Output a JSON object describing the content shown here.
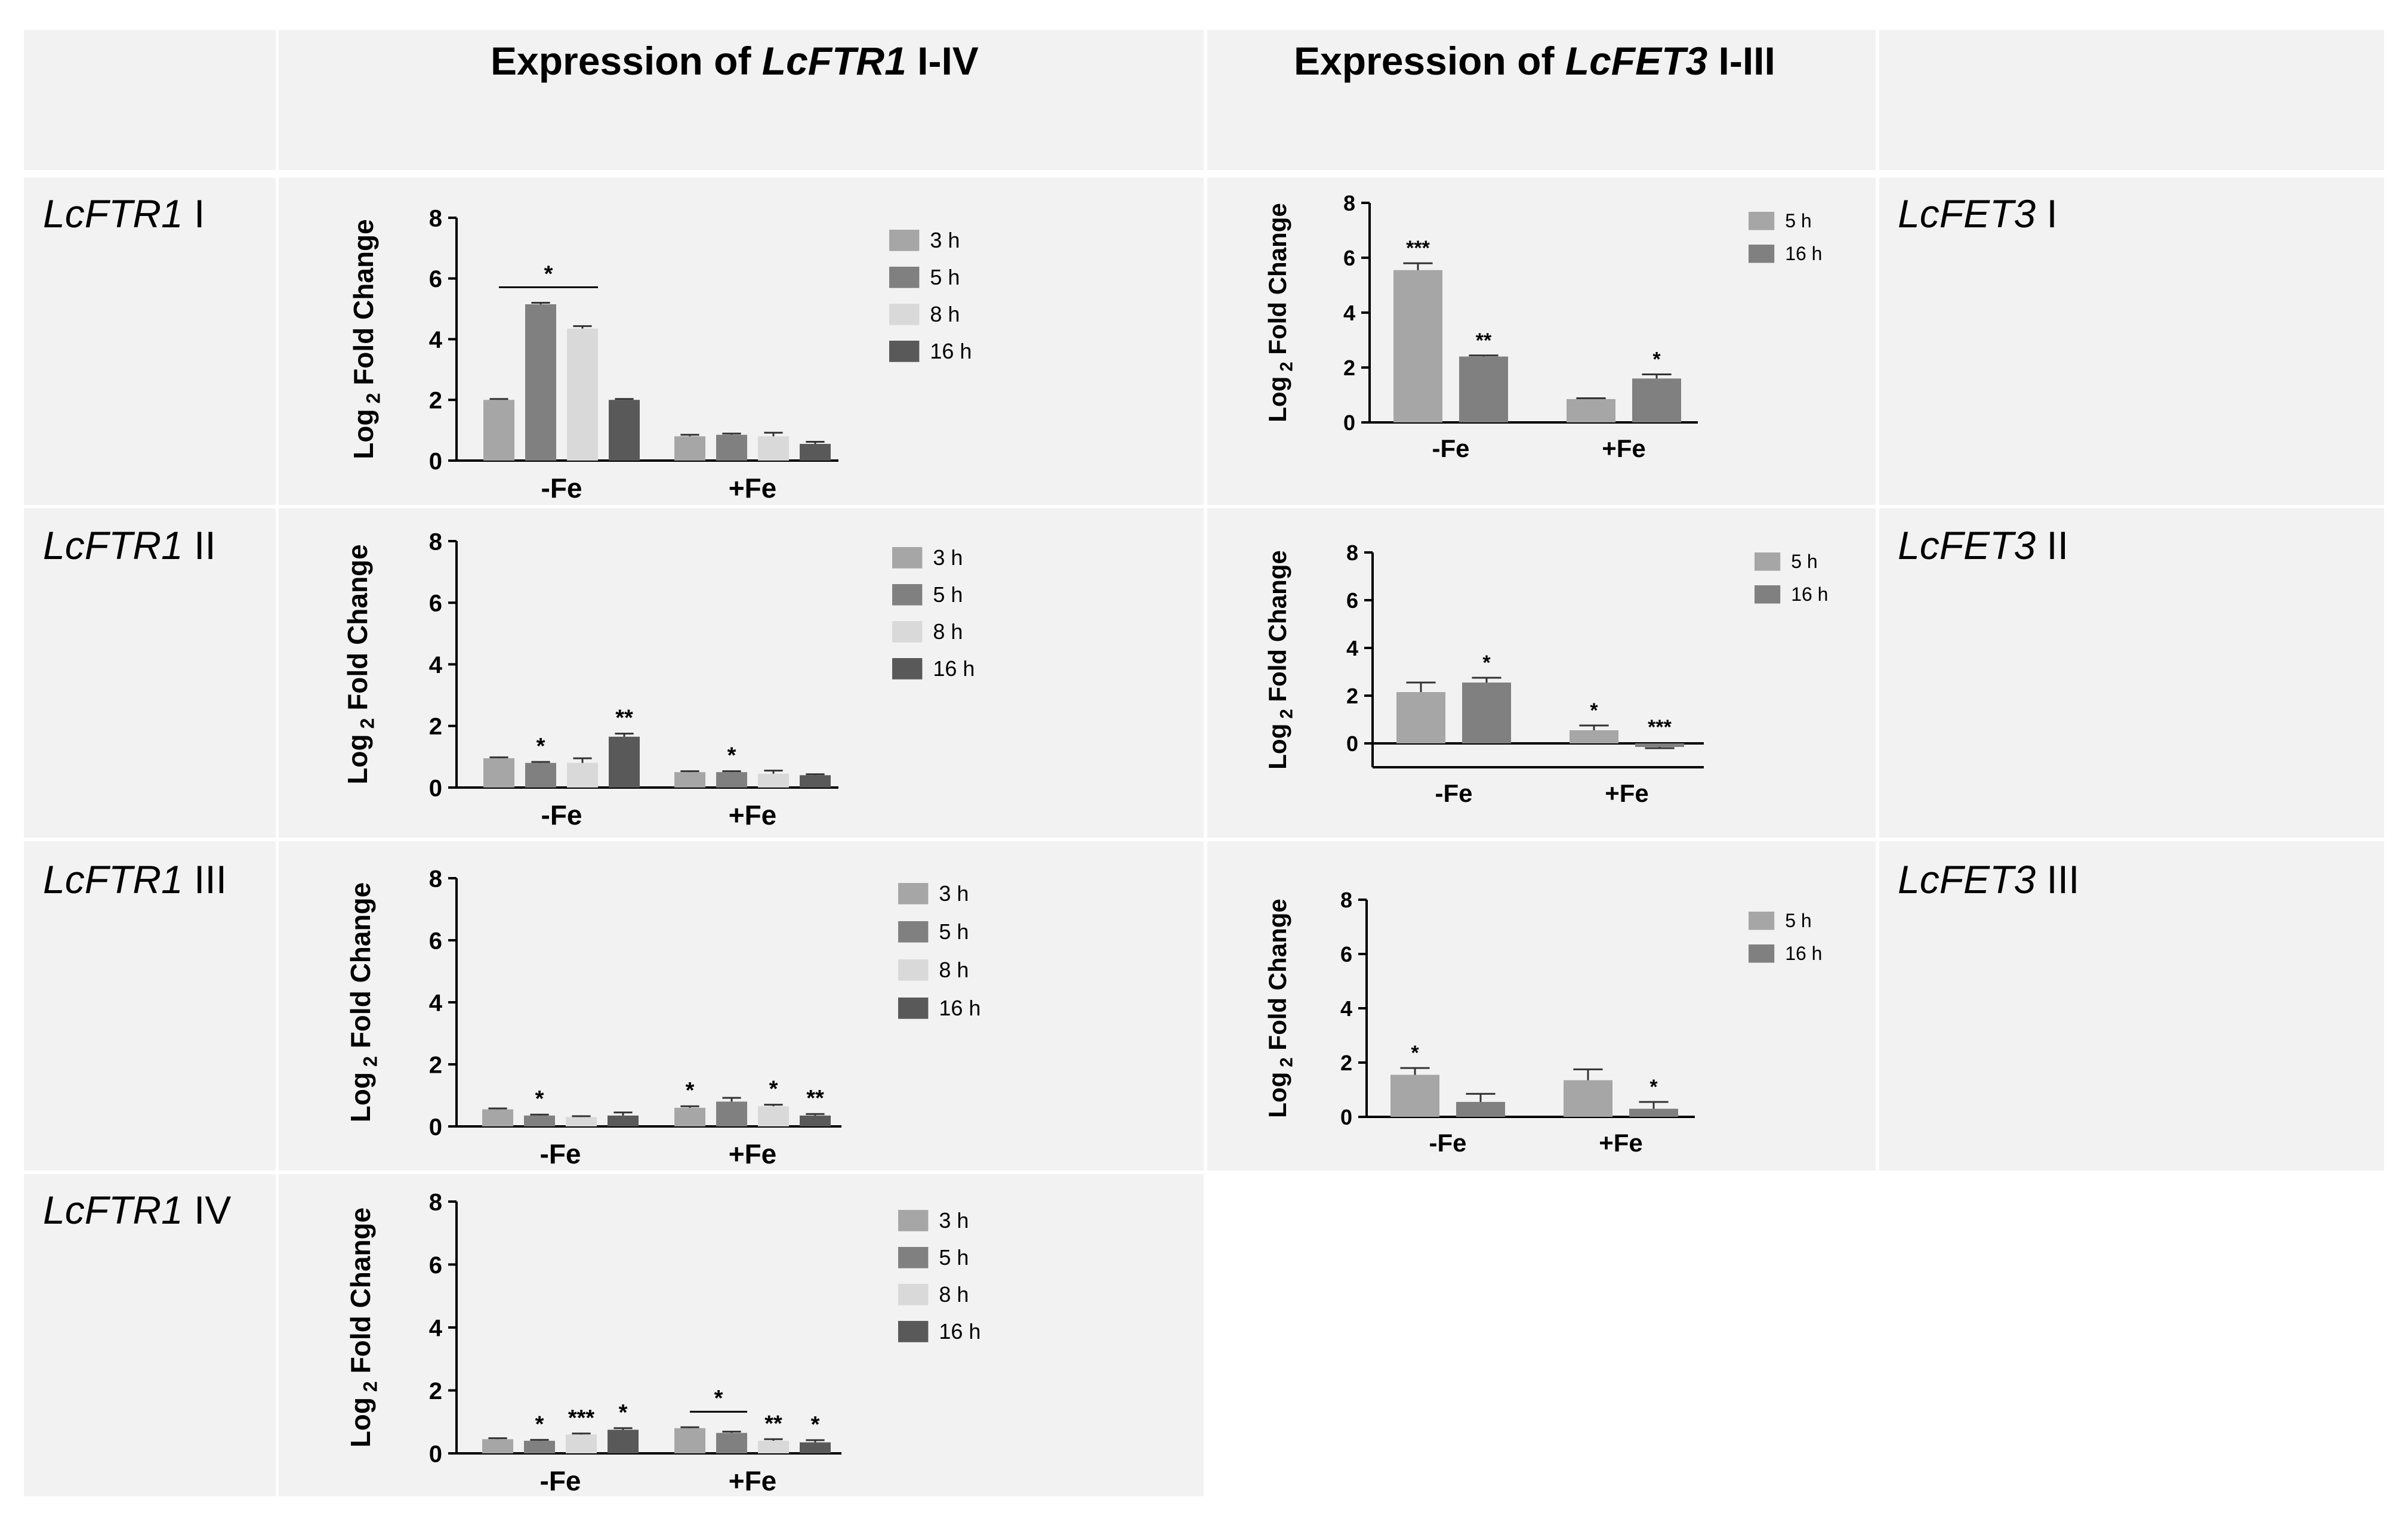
{
  "headers": {
    "ftr_prefix": "Expression of ",
    "ftr_gene": "LcFTR1",
    "ftr_suffix": " I-IV",
    "fet_prefix": "Expression of ",
    "fet_gene": "LcFET3",
    "fet_suffix": " I-III"
  },
  "row_labels": {
    "ftr": [
      {
        "gene": "LcFTR1",
        "num": " I"
      },
      {
        "gene": "LcFTR1",
        "num": " II"
      },
      {
        "gene": "LcFTR1",
        "num": " III"
      },
      {
        "gene": "LcFTR1",
        "num": " IV"
      }
    ],
    "fet": [
      {
        "gene": "LcFET3",
        "num": " I"
      },
      {
        "gene": "LcFET3",
        "num": " II"
      },
      {
        "gene": "LcFET3",
        "num": " III"
      }
    ]
  },
  "colors": {
    "3 h": "#a6a6a6",
    "5 h": "#808080",
    "8 h": "#d9d9d9",
    "16 h": "#595959",
    "fet_5h": "#a6a6a6",
    "fet_16h": "#808080"
  },
  "chart_data": [
    {
      "id": "ftr1-I",
      "type": "bar",
      "ylabel_main": "Log",
      "ylabel_sub": "2",
      "ylabel_rest": " Fold Change",
      "categories": [
        "-Fe",
        "+Fe"
      ],
      "ylim": [
        0,
        8
      ],
      "yticks": [
        "0",
        "2",
        "4",
        "6",
        "8"
      ],
      "series": [
        {
          "name": "3 h",
          "values": [
            2.0,
            0.8
          ],
          "err": [
            0.03,
            0.05
          ],
          "sig": [
            "",
            ""
          ]
        },
        {
          "name": "5 h",
          "values": [
            5.15,
            0.85
          ],
          "err": [
            0.05,
            0.04
          ],
          "sig": [
            "",
            ""
          ]
        },
        {
          "name": "8 h",
          "values": [
            4.35,
            0.8
          ],
          "err": [
            0.08,
            0.12
          ],
          "sig": [
            "",
            ""
          ]
        },
        {
          "name": "16 h",
          "values": [
            2.0,
            0.55
          ],
          "err": [
            0.03,
            0.07
          ],
          "sig": [
            "",
            ""
          ]
        }
      ],
      "brackets": [
        {
          "group": 0,
          "from": 0.5,
          "to": 2.5,
          "label": "*"
        }
      ]
    },
    {
      "id": "ftr1-II",
      "type": "bar",
      "ylabel_main": "Log",
      "ylabel_sub": "2",
      "ylabel_rest": " Fold Change",
      "categories": [
        "-Fe",
        "+Fe"
      ],
      "ylim": [
        0,
        8
      ],
      "yticks": [
        "0",
        "2",
        "4",
        "6",
        "8"
      ],
      "series": [
        {
          "name": "3 h",
          "values": [
            0.95,
            0.5
          ],
          "err": [
            0.03,
            0.03
          ],
          "sig": [
            "",
            ""
          ]
        },
        {
          "name": "5 h",
          "values": [
            0.8,
            0.5
          ],
          "err": [
            0.03,
            0.03
          ],
          "sig": [
            "*",
            "*"
          ]
        },
        {
          "name": "8 h",
          "values": [
            0.8,
            0.45
          ],
          "err": [
            0.15,
            0.1
          ],
          "sig": [
            "",
            ""
          ]
        },
        {
          "name": "16 h",
          "values": [
            1.65,
            0.4
          ],
          "err": [
            0.1,
            0.03
          ],
          "sig": [
            "**",
            ""
          ]
        }
      ],
      "brackets": []
    },
    {
      "id": "ftr1-III",
      "type": "bar",
      "ylabel_main": "Log",
      "ylabel_sub": "2",
      "ylabel_rest": " Fold Change",
      "categories": [
        "-Fe",
        "+Fe"
      ],
      "ylim": [
        0,
        8
      ],
      "yticks": [
        "0",
        "2",
        "4",
        "6",
        "8"
      ],
      "series": [
        {
          "name": "3 h",
          "values": [
            0.55,
            0.6
          ],
          "err": [
            0.03,
            0.05
          ],
          "sig": [
            "",
            "*"
          ]
        },
        {
          "name": "5 h",
          "values": [
            0.35,
            0.8
          ],
          "err": [
            0.03,
            0.12
          ],
          "sig": [
            "*",
            ""
          ]
        },
        {
          "name": "8 h",
          "values": [
            0.3,
            0.65
          ],
          "err": [
            0.03,
            0.05
          ],
          "sig": [
            "",
            "*"
          ]
        },
        {
          "name": "16 h",
          "values": [
            0.35,
            0.35
          ],
          "err": [
            0.1,
            0.05
          ],
          "sig": [
            "",
            "**"
          ]
        }
      ],
      "brackets": []
    },
    {
      "id": "ftr1-IV",
      "type": "bar",
      "ylabel_main": "Log",
      "ylabel_sub": "2",
      "ylabel_rest": " Fold Change",
      "categories": [
        "-Fe",
        "+Fe"
      ],
      "ylim": [
        0,
        8
      ],
      "yticks": [
        "0",
        "2",
        "4",
        "6",
        "8"
      ],
      "series": [
        {
          "name": "3 h",
          "values": [
            0.45,
            0.8
          ],
          "err": [
            0.03,
            0.03
          ],
          "sig": [
            "",
            ""
          ]
        },
        {
          "name": "5 h",
          "values": [
            0.4,
            0.65
          ],
          "err": [
            0.03,
            0.04
          ],
          "sig": [
            "*",
            ""
          ]
        },
        {
          "name": "8 h",
          "values": [
            0.6,
            0.4
          ],
          "err": [
            0.03,
            0.05
          ],
          "sig": [
            "***",
            "**"
          ]
        },
        {
          "name": "16 h",
          "values": [
            0.75,
            0.35
          ],
          "err": [
            0.05,
            0.07
          ],
          "sig": [
            "*",
            "*"
          ]
        }
      ],
      "brackets": [
        {
          "group": 1,
          "from": 0.5,
          "to": 1.5,
          "label": "*"
        }
      ]
    },
    {
      "id": "fet3-I",
      "type": "bar",
      "ylabel_main": "Log",
      "ylabel_sub": "2",
      "ylabel_rest": " Fold Change",
      "categories": [
        "-Fe",
        "+Fe"
      ],
      "ylim": [
        0,
        8
      ],
      "yticks": [
        "0",
        "2",
        "4",
        "6",
        "8"
      ],
      "series": [
        {
          "name": "5 h",
          "values": [
            5.55,
            0.85
          ],
          "err": [
            0.25,
            0.03
          ],
          "sig": [
            "***",
            ""
          ]
        },
        {
          "name": "16 h",
          "values": [
            2.4,
            1.6
          ],
          "err": [
            0.04,
            0.15
          ],
          "sig": [
            "**",
            "*"
          ]
        }
      ],
      "brackets": []
    },
    {
      "id": "fet3-II",
      "type": "bar",
      "ylabel_main": "Log",
      "ylabel_sub": "2",
      "ylabel_rest": " Fold Change",
      "categories": [
        "-Fe",
        "+Fe"
      ],
      "ylim": [
        -1,
        8
      ],
      "yticks": [
        "0",
        "2",
        "4",
        "6",
        "8"
      ],
      "series": [
        {
          "name": "5 h",
          "values": [
            2.15,
            0.55
          ],
          "err": [
            0.4,
            0.2
          ],
          "sig": [
            "",
            "*"
          ]
        },
        {
          "name": "16 h",
          "values": [
            2.55,
            -0.15
          ],
          "err": [
            0.2,
            0.05
          ],
          "sig": [
            "*",
            "***"
          ]
        }
      ],
      "brackets": []
    },
    {
      "id": "fet3-III",
      "type": "bar",
      "ylabel_main": "Log",
      "ylabel_sub": "2",
      "ylabel_rest": " Fold Change",
      "categories": [
        "-Fe",
        "+Fe"
      ],
      "ylim": [
        0,
        8
      ],
      "yticks": [
        "0",
        "2",
        "4",
        "6",
        "8"
      ],
      "series": [
        {
          "name": "5 h",
          "values": [
            1.55,
            1.35
          ],
          "err": [
            0.25,
            0.4
          ],
          "sig": [
            "*",
            ""
          ]
        },
        {
          "name": "16 h",
          "values": [
            0.55,
            0.3
          ],
          "err": [
            0.3,
            0.25
          ],
          "sig": [
            "",
            "*"
          ]
        }
      ],
      "brackets": []
    }
  ]
}
